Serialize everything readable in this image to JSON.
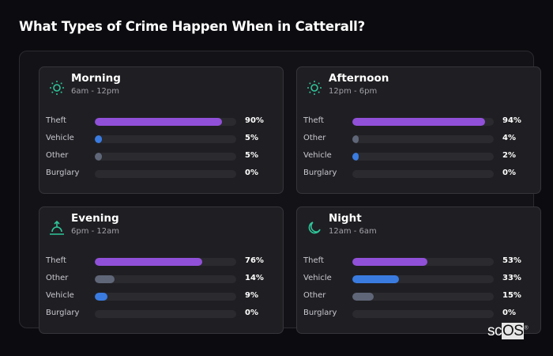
{
  "title": "What Types of Crime Happen When in Catterall?",
  "colors": {
    "Theft": "#9150d8",
    "Vehicle": "#3a7be0",
    "Other": "#5f6678",
    "Burglary": "#5f6678",
    "icon": "#2fc59a"
  },
  "cards": [
    {
      "name": "Morning",
      "range": "6am - 12pm",
      "icon": "sun-icon",
      "rows": [
        {
          "label": "Theft",
          "value": 90,
          "pct": "90%"
        },
        {
          "label": "Vehicle",
          "value": 5,
          "pct": "5%"
        },
        {
          "label": "Other",
          "value": 5,
          "pct": "5%"
        },
        {
          "label": "Burglary",
          "value": 0,
          "pct": "0%"
        }
      ]
    },
    {
      "name": "Afternoon",
      "range": "12pm - 6pm",
      "icon": "sun-icon",
      "rows": [
        {
          "label": "Theft",
          "value": 94,
          "pct": "94%"
        },
        {
          "label": "Other",
          "value": 4,
          "pct": "4%"
        },
        {
          "label": "Vehicle",
          "value": 2,
          "pct": "2%"
        },
        {
          "label": "Burglary",
          "value": 0,
          "pct": "0%"
        }
      ]
    },
    {
      "name": "Evening",
      "range": "6pm - 12am",
      "icon": "sunset-icon",
      "rows": [
        {
          "label": "Theft",
          "value": 76,
          "pct": "76%"
        },
        {
          "label": "Other",
          "value": 14,
          "pct": "14%"
        },
        {
          "label": "Vehicle",
          "value": 9,
          "pct": "9%"
        },
        {
          "label": "Burglary",
          "value": 0,
          "pct": "0%"
        }
      ]
    },
    {
      "name": "Night",
      "range": "12am - 6am",
      "icon": "moon-icon",
      "rows": [
        {
          "label": "Theft",
          "value": 53,
          "pct": "53%"
        },
        {
          "label": "Vehicle",
          "value": 33,
          "pct": "33%"
        },
        {
          "label": "Other",
          "value": 15,
          "pct": "15%"
        },
        {
          "label": "Burglary",
          "value": 0,
          "pct": "0%"
        }
      ]
    }
  ],
  "logo": {
    "text": "scOS"
  }
}
